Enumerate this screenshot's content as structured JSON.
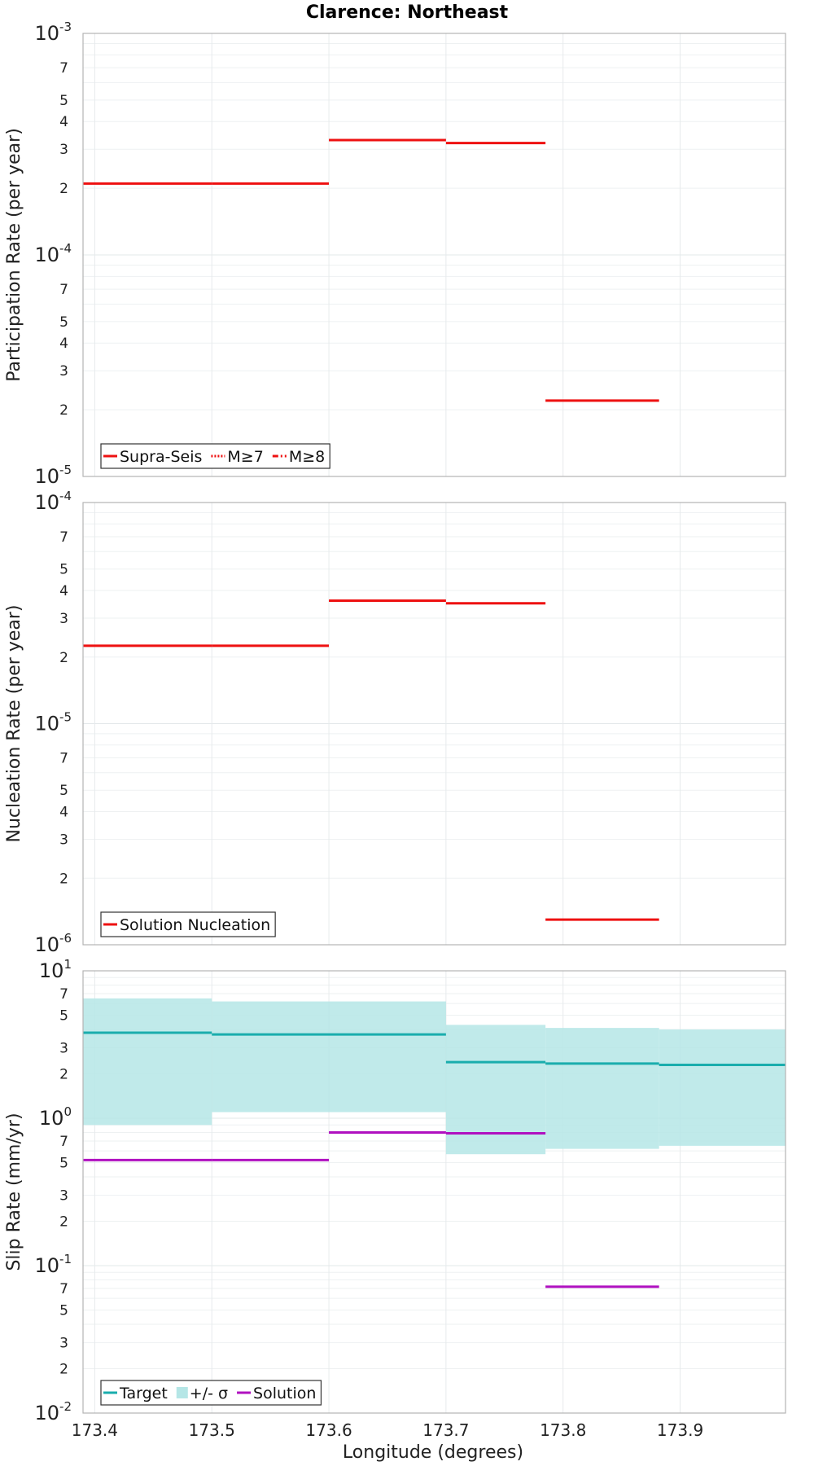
{
  "chart_data": {
    "title": "Clarence: Northeast",
    "xlabel": "Longitude (degrees)",
    "xlim": [
      173.39,
      173.99
    ],
    "xticks": [
      {
        "value": 173.4,
        "label": "173.4"
      },
      {
        "value": 173.5,
        "label": "173.5"
      },
      {
        "value": 173.6,
        "label": "173.6"
      },
      {
        "value": 173.7,
        "label": "173.7"
      },
      {
        "value": 173.8,
        "label": "173.8"
      },
      {
        "value": 173.9,
        "label": "173.9"
      }
    ],
    "panels": [
      {
        "id": "participation",
        "type": "line",
        "scale": "log",
        "ylabel": "Participation Rate (per year)",
        "ylim": [
          1e-05,
          0.001
        ],
        "decades": [
          {
            "value": 1e-05,
            "base": "10",
            "exp": "-5"
          },
          {
            "value": 0.0001,
            "base": "10",
            "exp": "-4"
          },
          {
            "value": 0.001,
            "base": "10",
            "exp": "-3"
          }
        ],
        "minor_labels": [
          "2",
          "3",
          "4",
          "5",
          "7"
        ],
        "series": [
          {
            "name": "Supra-Seis",
            "color": "#ee1111",
            "style": "solid",
            "segments": [
              {
                "x0": 173.39,
                "x1": 173.5,
                "y": 0.00021
              },
              {
                "x0": 173.5,
                "x1": 173.6,
                "y": 0.00021
              },
              {
                "x0": 173.6,
                "x1": 173.7,
                "y": 0.00033
              },
              {
                "x0": 173.7,
                "x1": 173.785,
                "y": 0.00032
              },
              {
                "x0": 173.785,
                "x1": 173.882,
                "y": 2.2e-05
              }
            ]
          },
          {
            "name": "M≥7",
            "color": "#ee1111",
            "style": "dotted",
            "segments": []
          },
          {
            "name": "M≥8",
            "color": "#ee1111",
            "style": "dashdot",
            "segments": []
          }
        ],
        "legend": [
          {
            "label": "Supra-Seis",
            "kind": "line",
            "color": "#ee1111",
            "style": "solid"
          },
          {
            "label": "M≥7",
            "kind": "line",
            "color": "#ee1111",
            "style": "dotted"
          },
          {
            "label": "M≥8",
            "kind": "line",
            "color": "#ee1111",
            "style": "dashdot"
          }
        ]
      },
      {
        "id": "nucleation",
        "type": "line",
        "scale": "log",
        "ylabel": "Nucleation Rate (per year)",
        "ylim": [
          1e-06,
          0.0001
        ],
        "decades": [
          {
            "value": 1e-06,
            "base": "10",
            "exp": "-6"
          },
          {
            "value": 1e-05,
            "base": "10",
            "exp": "-5"
          },
          {
            "value": 0.0001,
            "base": "10",
            "exp": "-4"
          }
        ],
        "minor_labels": [
          "2",
          "3",
          "4",
          "5",
          "7"
        ],
        "series": [
          {
            "name": "Solution Nucleation",
            "color": "#ee1111",
            "style": "solid",
            "segments": [
              {
                "x0": 173.39,
                "x1": 173.5,
                "y": 2.25e-05
              },
              {
                "x0": 173.5,
                "x1": 173.6,
                "y": 2.25e-05
              },
              {
                "x0": 173.6,
                "x1": 173.7,
                "y": 3.6e-05
              },
              {
                "x0": 173.7,
                "x1": 173.785,
                "y": 3.5e-05
              },
              {
                "x0": 173.785,
                "x1": 173.882,
                "y": 1.3e-06
              }
            ]
          }
        ],
        "legend": [
          {
            "label": "Solution Nucleation",
            "kind": "line",
            "color": "#ee1111",
            "style": "solid"
          }
        ]
      },
      {
        "id": "slip",
        "type": "line",
        "scale": "log",
        "ylabel": "Slip Rate (mm/yr)",
        "ylim": [
          0.01,
          10
        ],
        "decades": [
          {
            "value": 0.01,
            "base": "10",
            "exp": "-2"
          },
          {
            "value": 0.1,
            "base": "10",
            "exp": "-1"
          },
          {
            "value": 1,
            "base": "10",
            "exp": "0"
          },
          {
            "value": 10,
            "base": "10",
            "exp": "1"
          }
        ],
        "minor_labels": [
          "2",
          "3",
          "5",
          "7"
        ],
        "band": {
          "name": "+/- σ",
          "color": "#b5e6e6",
          "segments": [
            {
              "x0": 173.39,
              "x1": 173.5,
              "lo": 0.9,
              "hi": 6.5
            },
            {
              "x0": 173.5,
              "x1": 173.7,
              "lo": 1.1,
              "hi": 6.2
            },
            {
              "x0": 173.7,
              "x1": 173.785,
              "lo": 0.57,
              "hi": 4.3
            },
            {
              "x0": 173.785,
              "x1": 173.882,
              "lo": 0.62,
              "hi": 4.1
            },
            {
              "x0": 173.882,
              "x1": 173.99,
              "lo": 0.65,
              "hi": 4.0
            }
          ]
        },
        "series": [
          {
            "name": "Target",
            "color": "#1aadad",
            "style": "solid",
            "segments": [
              {
                "x0": 173.39,
                "x1": 173.5,
                "y": 3.8
              },
              {
                "x0": 173.5,
                "x1": 173.7,
                "y": 3.7
              },
              {
                "x0": 173.7,
                "x1": 173.785,
                "y": 2.4
              },
              {
                "x0": 173.785,
                "x1": 173.882,
                "y": 2.35
              },
              {
                "x0": 173.882,
                "x1": 173.99,
                "y": 2.3
              }
            ]
          },
          {
            "name": "Solution",
            "color": "#b011c0",
            "style": "solid",
            "segments": [
              {
                "x0": 173.39,
                "x1": 173.5,
                "y": 0.52
              },
              {
                "x0": 173.5,
                "x1": 173.6,
                "y": 0.52
              },
              {
                "x0": 173.6,
                "x1": 173.7,
                "y": 0.8
              },
              {
                "x0": 173.7,
                "x1": 173.785,
                "y": 0.79
              },
              {
                "x0": 173.785,
                "x1": 173.882,
                "y": 0.072
              }
            ]
          }
        ],
        "legend": [
          {
            "label": "Target",
            "kind": "line",
            "color": "#1aadad",
            "style": "solid"
          },
          {
            "label": "+/- σ",
            "kind": "box",
            "color": "#b5e6e6",
            "style": "solid"
          },
          {
            "label": "Solution",
            "kind": "line",
            "color": "#b011c0",
            "style": "solid"
          }
        ]
      }
    ]
  }
}
